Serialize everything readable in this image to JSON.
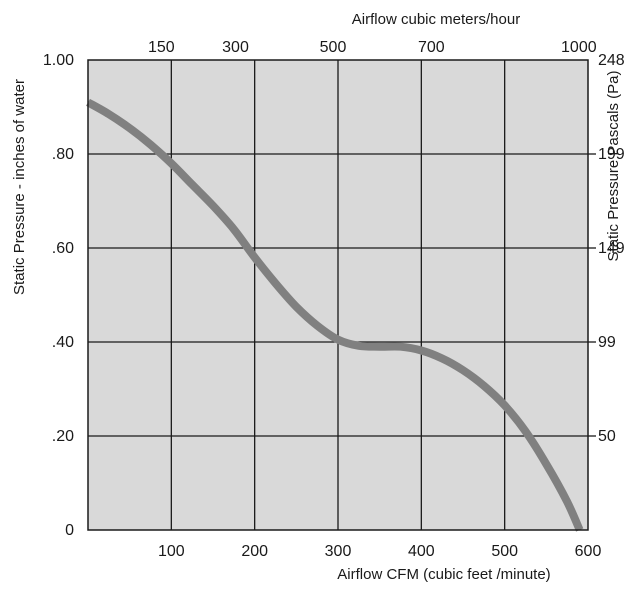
{
  "chart_data": {
    "type": "line",
    "title": "",
    "xlabel": "Airflow  CFM (cubic feet /minute)",
    "ylabel": "Static Pressure - inches of water",
    "top_xlabel": "Airflow cubic meters/hour",
    "right_ylabel": "Static Pressure Pascals (Pa)",
    "xlim": [
      0,
      600
    ],
    "ylim": [
      0,
      1.0
    ],
    "grid": true,
    "legend": "none",
    "bottom_ticks": [
      {
        "value": 100,
        "label": "100"
      },
      {
        "value": 200,
        "label": "200"
      },
      {
        "value": 300,
        "label": "300"
      },
      {
        "value": 400,
        "label": "400"
      },
      {
        "value": 500,
        "label": "500"
      },
      {
        "value": 600,
        "label": "600"
      }
    ],
    "left_ticks": [
      {
        "value": 0,
        "label": "0"
      },
      {
        "value": 0.2,
        "label": ".20"
      },
      {
        "value": 0.4,
        "label": ".40"
      },
      {
        "value": 0.6,
        "label": ".60"
      },
      {
        "value": 0.8,
        "label": ".80"
      },
      {
        "value": 1.0,
        "label": "1.00"
      }
    ],
    "top_ticks": [
      {
        "value": 88,
        "label": "150"
      },
      {
        "value": 177,
        "label": "300"
      },
      {
        "value": 294,
        "label": "500"
      },
      {
        "value": 412,
        "label": "700"
      },
      {
        "value": 589,
        "label": "1000"
      }
    ],
    "right_ticks": [
      {
        "value": 0.2,
        "label": "50"
      },
      {
        "value": 0.4,
        "label": "99"
      },
      {
        "value": 0.6,
        "label": "149"
      },
      {
        "value": 0.8,
        "label": "199"
      },
      {
        "value": 1.0,
        "label": "248"
      }
    ],
    "x": [
      0,
      25,
      50,
      75,
      100,
      125,
      150,
      175,
      200,
      225,
      250,
      275,
      300,
      325,
      350,
      375,
      400,
      425,
      450,
      475,
      500,
      525,
      550,
      575,
      590
    ],
    "y": [
      0.91,
      0.885,
      0.855,
      0.82,
      0.78,
      0.735,
      0.69,
      0.64,
      0.58,
      0.525,
      0.475,
      0.435,
      0.405,
      0.392,
      0.39,
      0.39,
      0.382,
      0.365,
      0.34,
      0.307,
      0.265,
      0.21,
      0.14,
      0.06,
      0.0
    ],
    "colors": {
      "plot_background": "#d9d9d9",
      "grid": "#1a1a1a",
      "curve": "#808080",
      "text": "#1a1a1a"
    }
  }
}
